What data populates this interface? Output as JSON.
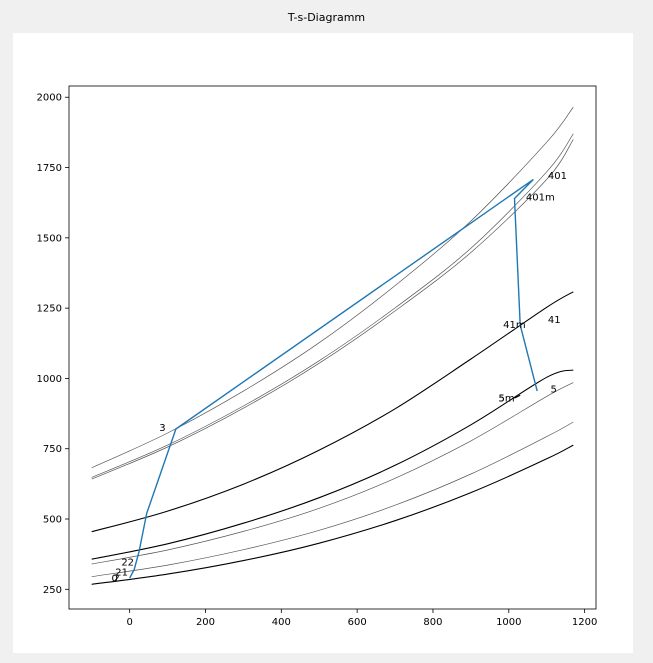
{
  "window": {
    "title": "T-s-Diagramm"
  },
  "chart_data": {
    "type": "line",
    "title": "",
    "xlabel": "",
    "ylabel": "",
    "xlim": [
      -160,
      1230
    ],
    "ylim": [
      180,
      2040
    ],
    "grid": false,
    "x_ticks": [
      0,
      200,
      400,
      600,
      800,
      1000,
      1200
    ],
    "y_ticks": [
      250,
      500,
      750,
      1000,
      1250,
      1500,
      1750,
      2000
    ],
    "series": [
      {
        "color": "#000000",
        "width": 1.1,
        "x": [
          -100,
          100,
          300,
          500,
          700,
          900,
          1100,
          1170
        ],
        "y": [
          268,
          304,
          352,
          414,
          494,
          594,
          714,
          763
        ]
      },
      {
        "color": "#555555",
        "width": 0.7,
        "x": [
          -100,
          100,
          300,
          500,
          700,
          900,
          1100,
          1170
        ],
        "y": [
          295,
          336,
          391,
          460,
          549,
          660,
          793,
          845
        ]
      },
      {
        "color": "#555555",
        "width": 0.7,
        "x": [
          -100,
          100,
          300,
          500,
          700,
          900,
          1100,
          1170
        ],
        "y": [
          340,
          390,
          456,
          538,
          645,
          778,
          936,
          985
        ]
      },
      {
        "color": "#000000",
        "width": 1.1,
        "x": [
          -100,
          100,
          300,
          500,
          700,
          900,
          1100,
          1170
        ],
        "y": [
          357,
          412,
          485,
          576,
          691,
          835,
          1004,
          1030
        ]
      },
      {
        "color": "#000000",
        "width": 1.1,
        "x": [
          -100,
          100,
          300,
          500,
          700,
          900,
          1100,
          1170
        ],
        "y": [
          455,
          528,
          624,
          745,
          892,
          1069,
          1253,
          1308
        ]
      },
      {
        "color": "#555555",
        "width": 0.7,
        "x": [
          -100,
          100,
          300,
          500,
          700,
          900,
          1100,
          1170
        ],
        "y": [
          642,
          756,
          894,
          1054,
          1240,
          1448,
          1708,
          1850
        ]
      },
      {
        "color": "#555555",
        "width": 0.7,
        "x": [
          -100,
          100,
          300,
          500,
          700,
          900,
          1100,
          1170
        ],
        "y": [
          648,
          763,
          902,
          1063,
          1251,
          1463,
          1735,
          1870
        ]
      },
      {
        "color": "#555555",
        "width": 0.7,
        "x": [
          -100,
          100,
          300,
          500,
          700,
          900,
          1100,
          1170
        ],
        "y": [
          682,
          806,
          955,
          1127,
          1330,
          1560,
          1840,
          1965
        ]
      },
      {
        "color": "#1f77b4",
        "width": 1.4,
        "x": [
          0,
          12,
          25,
          45,
          122,
          1065,
          1015,
          1030,
          1075
        ],
        "y": [
          290,
          320,
          385,
          520,
          820,
          1708,
          1640,
          1190,
          955
        ]
      },
      {
        "color": "#000000",
        "width": 1.1,
        "x": [
          1015,
          1030
        ],
        "y": [
          930,
          940
        ]
      }
    ],
    "annotations": [
      {
        "text": "0",
        "x": -48,
        "y": 290
      },
      {
        "text": "2",
        "x": -43,
        "y": 290
      },
      {
        "text": "21",
        "x": -38,
        "y": 311
      },
      {
        "text": "22",
        "x": -22,
        "y": 348
      },
      {
        "text": "3",
        "x": 78,
        "y": 825
      },
      {
        "text": "401",
        "x": 1103,
        "y": 1722
      },
      {
        "text": "401m",
        "x": 1045,
        "y": 1645
      },
      {
        "text": "41",
        "x": 1103,
        "y": 1210
      },
      {
        "text": "41m",
        "x": 985,
        "y": 1192
      },
      {
        "text": "5",
        "x": 1110,
        "y": 962
      },
      {
        "text": "5m",
        "x": 973,
        "y": 930
      },
      {
        "text": "5",
        "x": 973,
        "y": 930
      }
    ]
  }
}
